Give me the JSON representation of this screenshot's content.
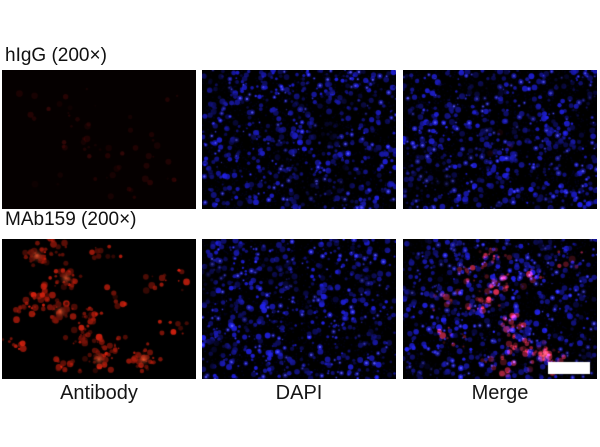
{
  "figure": {
    "row_labels": [
      "hIgG (200×)",
      "MAb159 (200×)"
    ],
    "column_captions": [
      "Antibody",
      "DAPI",
      "Merge"
    ]
  },
  "panels": [
    {
      "id": "higg-antibody",
      "row_label": "hIgG (200×)",
      "column": "Antibody",
      "texture": "red-faint",
      "description": "near-black field with very faint red signal"
    },
    {
      "id": "higg-dapi",
      "row_label": "hIgG (200×)",
      "column": "DAPI",
      "texture": "dapi",
      "description": "blue DAPI-stained nuclei on black"
    },
    {
      "id": "higg-merge",
      "row_label": "hIgG (200×)",
      "column": "Merge",
      "texture": "merge-faint",
      "description": "blue nuclei, essentially no red signal"
    },
    {
      "id": "mab159-antibody",
      "row_label": "MAb159 (200×)",
      "column": "Antibody",
      "texture": "red-strong",
      "description": "bright red antibody staining clusters on black"
    },
    {
      "id": "mab159-dapi",
      "row_label": "MAb159 (200×)",
      "column": "DAPI",
      "texture": "dapi",
      "description": "blue DAPI-stained nuclei on black"
    },
    {
      "id": "mab159-merge",
      "row_label": "MAb159 (200×)",
      "column": "Merge",
      "texture": "merge-strong",
      "scale_bar": true,
      "description": "red staining overlaid on blue nuclei, white scale bar bottom right"
    }
  ],
  "colors": {
    "background": "#ffffff",
    "panel_bg": "#000000",
    "dapi_blue": "#2020e0",
    "signal_red": "#e62410",
    "merge_pink": "#e03050",
    "scale_bar": "#ffffff",
    "label_text": "#111111"
  }
}
